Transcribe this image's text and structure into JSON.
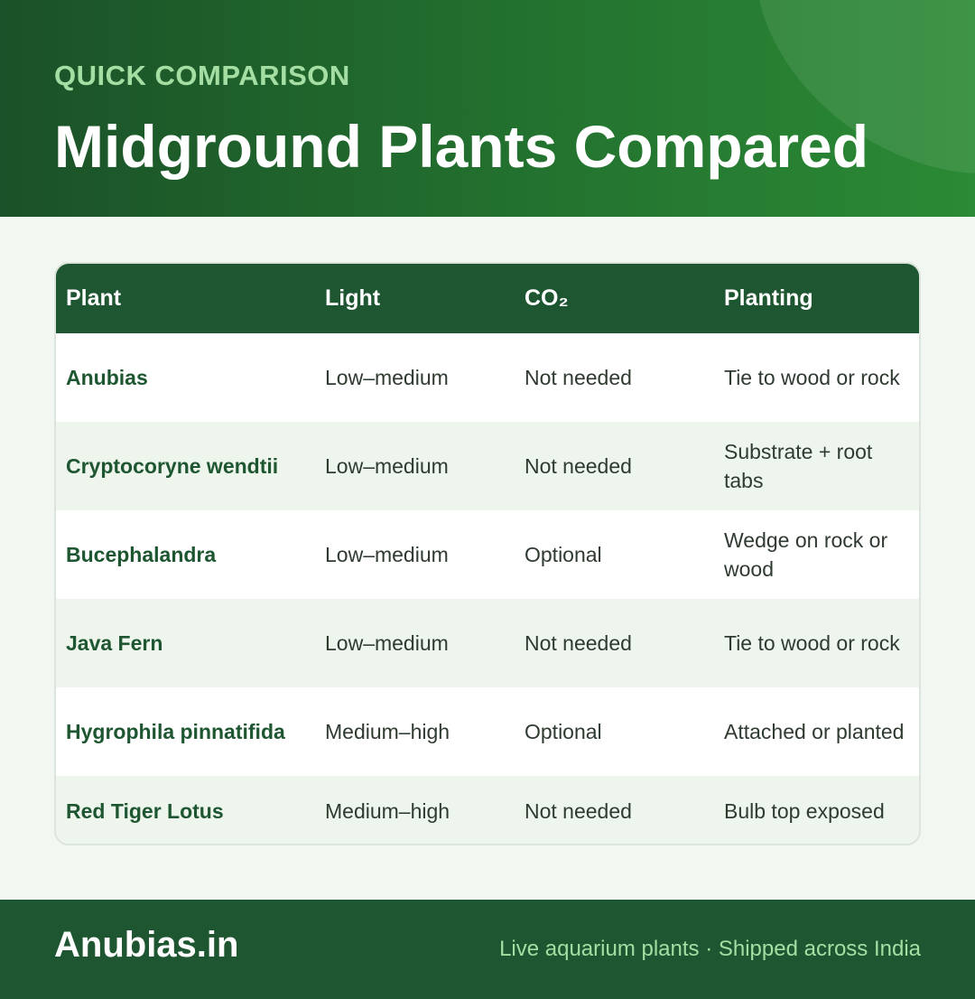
{
  "header": {
    "eyebrow": "QUICK COMPARISON",
    "title": "Midground Plants Compared"
  },
  "table": {
    "columns": [
      "Plant",
      "Light",
      "CO₂",
      "Planting"
    ],
    "rows": [
      {
        "plant": "Anubias",
        "light": "Low–medium",
        "co2": "Not needed",
        "planting": "Tie to wood or rock"
      },
      {
        "plant": "Cryptocoryne wendtii",
        "light": "Low–medium",
        "co2": "Not needed",
        "planting": "Substrate + root tabs"
      },
      {
        "plant": "Bucephalandra",
        "light": "Low–medium",
        "co2": "Optional",
        "planting": "Wedge on rock or wood"
      },
      {
        "plant": "Java Fern",
        "light": "Low–medium",
        "co2": "Not needed",
        "planting": "Tie to wood or rock"
      },
      {
        "plant": "Hygrophila pinnatifida",
        "light": "Medium–high",
        "co2": "Optional",
        "planting": "Attached or planted"
      },
      {
        "plant": "Red Tiger Lotus",
        "light": "Medium–high",
        "co2": "Not needed",
        "planting": "Bulb top exposed"
      }
    ]
  },
  "footer": {
    "brand": "Anubias.in",
    "tagline": "Live aquarium plants · Shipped across India"
  },
  "colors": {
    "header_dark": "#1b5128",
    "header_light": "#2b8a35",
    "table_header": "#1e5631",
    "row_alt": "#edf5ec",
    "accent_light": "#a4dea3"
  }
}
